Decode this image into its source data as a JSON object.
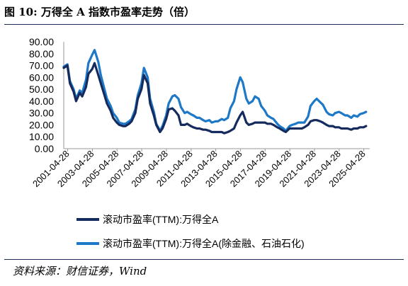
{
  "header": {
    "title": "图 10: 万得全 A 指数市盈率走势（倍）"
  },
  "footer": {
    "source": "资料来源：财信证券，Wind"
  },
  "chart_data": {
    "type": "line",
    "title": "",
    "xlabel": "",
    "ylabel": "",
    "ylim": [
      0,
      90
    ],
    "y_ticks": [
      "0.00",
      "10.00",
      "20.00",
      "30.00",
      "40.00",
      "50.00",
      "60.00",
      "70.00",
      "80.00",
      "90.00"
    ],
    "x_ticks": [
      "2001-04-28",
      "2003-04-28",
      "2005-04-28",
      "2007-04-28",
      "2009-04-28",
      "2011-04-28",
      "2013-04-28",
      "2015-04-28",
      "2017-04-28",
      "2019-04-28",
      "2021-04-28",
      "2023-04-28",
      "2025-04-28"
    ],
    "legend_position": "bottom",
    "colors": {
      "series_1": "#152b5e",
      "series_2": "#1e78c8"
    },
    "x": [
      2001.0,
      2001.3,
      2001.5,
      2001.8,
      2002.0,
      2002.3,
      2002.5,
      2002.8,
      2003.0,
      2003.3,
      2003.5,
      2003.8,
      2004.0,
      2004.3,
      2004.5,
      2004.8,
      2005.0,
      2005.3,
      2005.5,
      2005.8,
      2006.0,
      2006.3,
      2006.5,
      2006.8,
      2007.0,
      2007.3,
      2007.5,
      2007.8,
      2008.0,
      2008.3,
      2008.5,
      2008.8,
      2009.0,
      2009.3,
      2009.5,
      2009.8,
      2010.0,
      2010.3,
      2010.5,
      2010.8,
      2011.0,
      2011.3,
      2011.5,
      2011.8,
      2012.0,
      2012.3,
      2012.5,
      2012.8,
      2013.0,
      2013.3,
      2013.5,
      2013.8,
      2014.0,
      2014.3,
      2014.5,
      2014.8,
      2015.0,
      2015.3,
      2015.5,
      2015.8,
      2016.0,
      2016.3,
      2016.5,
      2016.8,
      2017.0,
      2017.3,
      2017.5,
      2017.8,
      2018.0,
      2018.3,
      2018.5,
      2018.8,
      2019.0,
      2019.3,
      2019.5,
      2019.8,
      2020.0,
      2020.3,
      2020.5,
      2020.8,
      2021.0,
      2021.3,
      2021.5,
      2021.8,
      2022.0,
      2022.3,
      2022.5,
      2022.8,
      2023.0,
      2023.3,
      2023.5,
      2023.8,
      2024.0,
      2024.3,
      2024.5,
      2024.8,
      2025.0,
      2025.3,
      2025.5
    ],
    "series": [
      {
        "name": "滚动市盈率(TTM):万得全A",
        "values": [
          68,
          70,
          55,
          48,
          40,
          47,
          44,
          52,
          63,
          67,
          72,
          62,
          55,
          45,
          38,
          32,
          26,
          22,
          20,
          19,
          19,
          21,
          23,
          30,
          42,
          50,
          62,
          55,
          38,
          28,
          20,
          14,
          17,
          25,
          33,
          34,
          32,
          28,
          20,
          20,
          21,
          19,
          18,
          17,
          17,
          16,
          16,
          15,
          14,
          14,
          14,
          14,
          13,
          14,
          15,
          17,
          22,
          28,
          31,
          22,
          20,
          21,
          22,
          22,
          22,
          22,
          21,
          21,
          20,
          18,
          17,
          15,
          14,
          17,
          17,
          17,
          17,
          17,
          18,
          20,
          23,
          24,
          24,
          23,
          22,
          20,
          19,
          19,
          18,
          18,
          17,
          17,
          17,
          16,
          17,
          17,
          18,
          18,
          19
        ]
      },
      {
        "name": "滚动市盈率(TTM):万得全A(除金融、石油石化)",
        "values": [
          69,
          71,
          57,
          50,
          42,
          49,
          47,
          58,
          72,
          79,
          83,
          73,
          62,
          50,
          42,
          36,
          30,
          26,
          22,
          21,
          21,
          23,
          25,
          33,
          45,
          55,
          68,
          60,
          42,
          31,
          21,
          15,
          19,
          28,
          38,
          44,
          45,
          42,
          35,
          30,
          31,
          29,
          28,
          26,
          26,
          24,
          23,
          24,
          22,
          23,
          23,
          25,
          24,
          26,
          34,
          40,
          50,
          60,
          56,
          42,
          38,
          40,
          44,
          42,
          36,
          32,
          28,
          26,
          25,
          21,
          19,
          17,
          15,
          19,
          20,
          21,
          22,
          22,
          22,
          27,
          36,
          40,
          42,
          39,
          37,
          31,
          29,
          28,
          30,
          31,
          30,
          28,
          28,
          26,
          28,
          27,
          29,
          30,
          31
        ]
      }
    ]
  }
}
